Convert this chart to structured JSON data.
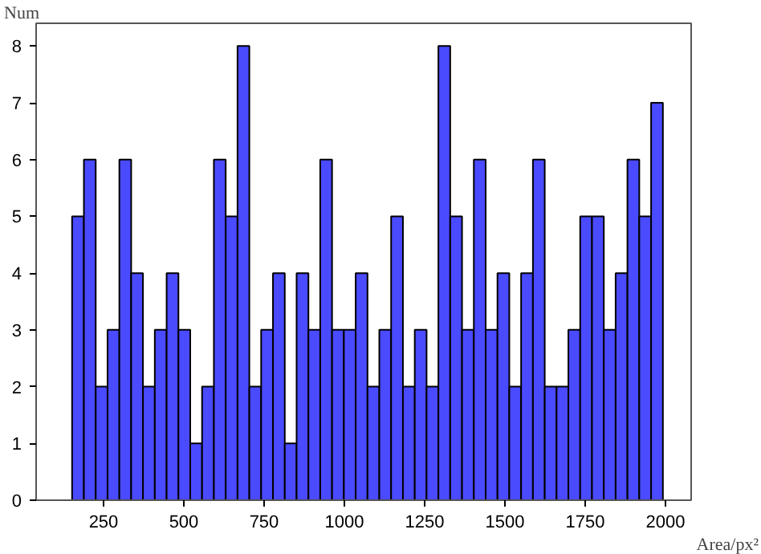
{
  "chart_data": {
    "type": "histogram",
    "xlabel": "Area/px²",
    "ylabel": "Num",
    "color": "#4a4aff",
    "bins": [
      152,
      188.8,
      225.6,
      262.4,
      299.2,
      336,
      372.8,
      409.6,
      446.4,
      483.2,
      520,
      556.8,
      593.6,
      630.4,
      667.2,
      704,
      740.8,
      777.6,
      814.4,
      851.2,
      888,
      924.8,
      961.6,
      998.4,
      1035.2,
      1072,
      1108.8,
      1145.6,
      1182.4,
      1219.2,
      1256,
      1292.8,
      1329.6,
      1366.4,
      1403.2,
      1440,
      1476.8,
      1513.6,
      1550.4,
      1587.2,
      1624,
      1660.8,
      1697.6,
      1734.4,
      1771.2,
      1808,
      1844.8,
      1881.6,
      1918.4,
      1955.2,
      1992
    ],
    "values": [
      5,
      6,
      2,
      3,
      6,
      4,
      2,
      3,
      4,
      3,
      1,
      2,
      6,
      5,
      8,
      2,
      3,
      4,
      1,
      4,
      3,
      6,
      3,
      3,
      4,
      2,
      3,
      5,
      2,
      3,
      2,
      8,
      5,
      3,
      6,
      3,
      4,
      2,
      4,
      6,
      2,
      2,
      3,
      5,
      5,
      3,
      4,
      6,
      5,
      7
    ],
    "xlim": [
      40,
      2080
    ],
    "ylim": [
      0,
      8.4
    ],
    "xticks": [
      250,
      500,
      750,
      1000,
      1250,
      1500,
      1750,
      2000
    ],
    "yticks": [
      0,
      1,
      2,
      3,
      4,
      5,
      6,
      7,
      8
    ],
    "grid": false
  }
}
